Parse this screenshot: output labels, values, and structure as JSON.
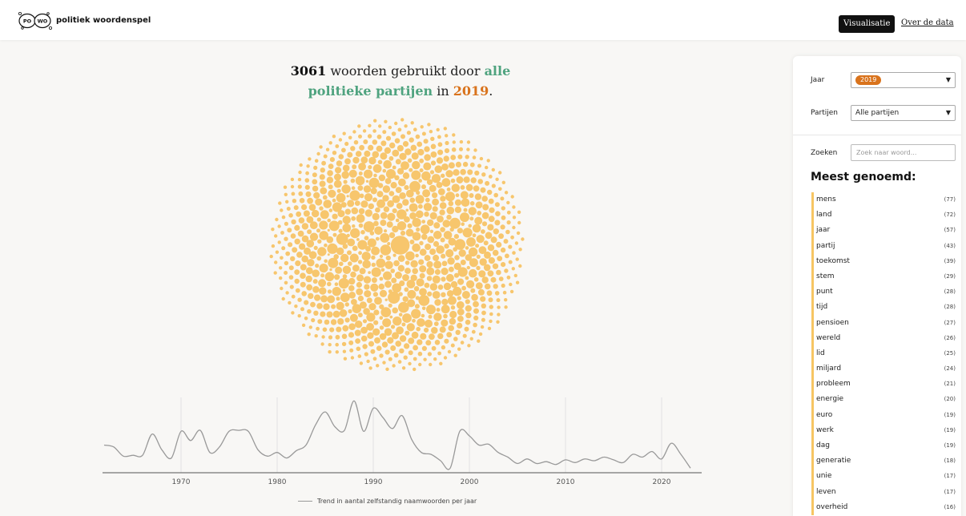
{
  "header": {
    "brand": "politiek woordenspel",
    "logo_text_left": "PO",
    "logo_text_right": "WO",
    "nav": [
      {
        "label": "Visualisatie",
        "active": true
      },
      {
        "label": "Over de data",
        "active": false
      }
    ]
  },
  "headline": {
    "count": "3061",
    "mid": "woorden gebruikt door",
    "subject_1": "alle",
    "subject_2": "politieke partijen",
    "in": "in",
    "year": "2019",
    "end": "."
  },
  "colors": {
    "bubble": "#f7c66d",
    "accent_green": "#4fa37f",
    "accent_orange": "#d9731c",
    "trend_line": "#999999"
  },
  "sidebar": {
    "year_label": "Jaar",
    "year_value": "2019",
    "parties_label": "Partijen",
    "parties_value": "Alle partijen",
    "search_label": "Zoeken",
    "search_placeholder": "Zoek naar woord...",
    "most_title": "Meest genoemd:",
    "words": [
      {
        "word": "mens",
        "count": "(77)"
      },
      {
        "word": "land",
        "count": "(72)"
      },
      {
        "word": "jaar",
        "count": "(57)"
      },
      {
        "word": "partij",
        "count": "(43)"
      },
      {
        "word": "toekomst",
        "count": "(39)"
      },
      {
        "word": "stem",
        "count": "(29)"
      },
      {
        "word": "punt",
        "count": "(28)"
      },
      {
        "word": "tijd",
        "count": "(28)"
      },
      {
        "word": "pensioen",
        "count": "(27)"
      },
      {
        "word": "wereld",
        "count": "(26)"
      },
      {
        "word": "lid",
        "count": "(25)"
      },
      {
        "word": "miljard",
        "count": "(24)"
      },
      {
        "word": "probleem",
        "count": "(21)"
      },
      {
        "word": "energie",
        "count": "(20)"
      },
      {
        "word": "euro",
        "count": "(19)"
      },
      {
        "word": "werk",
        "count": "(19)"
      },
      {
        "word": "dag",
        "count": "(19)"
      },
      {
        "word": "generatie",
        "count": "(18)"
      },
      {
        "word": "unie",
        "count": "(17)"
      },
      {
        "word": "leven",
        "count": "(17)"
      },
      {
        "word": "overheid",
        "count": "(16)"
      }
    ]
  },
  "chart_data": {
    "type": "line",
    "legend": "Trend in aantal zelfstandig naamwoorden per jaar",
    "xlim": [
      1962,
      2024
    ],
    "x_ticks": [
      "1970",
      "1980",
      "1990",
      "2000",
      "2010",
      "2020"
    ],
    "series": [
      {
        "name": "Trend in aantal zelfstandig naamwoorden per jaar",
        "x": [
          1962,
          1963,
          1964,
          1965,
          1966,
          1967,
          1968,
          1969,
          1970,
          1971,
          1972,
          1973,
          1974,
          1975,
          1976,
          1977,
          1978,
          1979,
          1980,
          1981,
          1982,
          1983,
          1984,
          1985,
          1986,
          1987,
          1988,
          1989,
          1990,
          1991,
          1992,
          1993,
          1994,
          1995,
          1996,
          1997,
          1998,
          1999,
          2000,
          2001,
          2002,
          2003,
          2004,
          2005,
          2006,
          2007,
          2008,
          2009,
          2010,
          2011,
          2012,
          2013,
          2014,
          2015,
          2016,
          2017,
          2018,
          2019,
          2020,
          2021,
          2022,
          2023
        ],
        "y": [
          30,
          28,
          18,
          19,
          19,
          42,
          25,
          16,
          45,
          35,
          46,
          22,
          28,
          45,
          46,
          45,
          25,
          18,
          22,
          16,
          24,
          30,
          52,
          66,
          50,
          46,
          78,
          45,
          70,
          60,
          48,
          62,
          36,
          22,
          20,
          13,
          5,
          45,
          40,
          30,
          31,
          22,
          17,
          10,
          15,
          10,
          12,
          9,
          14,
          11,
          15,
          13,
          17,
          14,
          11,
          20,
          17,
          23,
          15,
          32,
          20,
          5
        ]
      }
    ]
  }
}
